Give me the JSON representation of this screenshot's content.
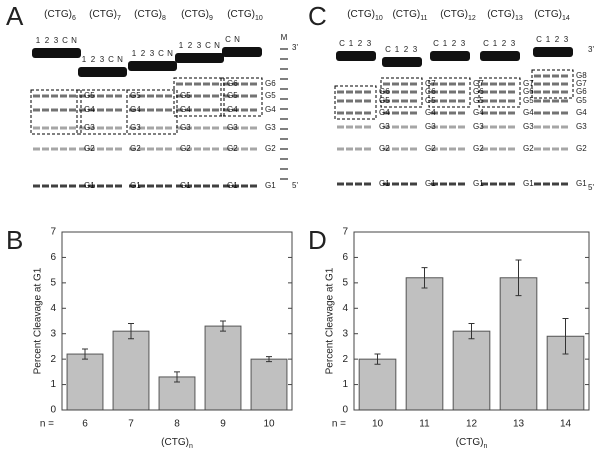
{
  "panels": {
    "a": "A",
    "b": "B",
    "c": "C",
    "d": "D"
  },
  "gel_a": {
    "groups": [
      {
        "name": "(CTG)",
        "n": "6",
        "lanes": [
          "1",
          "2",
          "3",
          "C",
          "N"
        ],
        "bands": [
          "G5",
          "G4",
          "G3",
          "G2",
          "G1"
        ]
      },
      {
        "name": "(CTG)",
        "n": "7",
        "lanes": [
          "1",
          "2",
          "3",
          "C",
          "N"
        ],
        "bands": [
          "G5",
          "G4",
          "G3",
          "G2",
          "G1"
        ]
      },
      {
        "name": "(CTG)",
        "n": "8",
        "lanes": [
          "1",
          "2",
          "3",
          "C",
          "N"
        ],
        "bands": [
          "G5",
          "G4",
          "G3",
          "G2",
          "G1"
        ]
      },
      {
        "name": "(CTG)",
        "n": "9",
        "lanes": [
          "1",
          "2",
          "3",
          "C",
          "N"
        ],
        "bands": [
          "G6",
          "G5",
          "G4",
          "G3",
          "G2",
          "G1"
        ]
      },
      {
        "name": "(CTG)",
        "n": "10",
        "lanes": [
          "C",
          "N"
        ],
        "bands": [
          "G6",
          "G5",
          "G4",
          "G3",
          "G2",
          "G1"
        ]
      }
    ],
    "marker": "M",
    "end3": "3'",
    "end5": "5'"
  },
  "gel_c": {
    "groups": [
      {
        "name": "(CTG)",
        "n": "10",
        "lanes": [
          "C",
          "1",
          "2",
          "3"
        ],
        "bands": [
          "G6",
          "G5",
          "G4",
          "G3",
          "G2",
          "G1"
        ]
      },
      {
        "name": "(CTG)",
        "n": "11",
        "lanes": [
          "C",
          "1",
          "2",
          "3"
        ],
        "bands": [
          "G7",
          "G6",
          "G5",
          "G4",
          "G3",
          "G2",
          "G1"
        ]
      },
      {
        "name": "(CTG)",
        "n": "12",
        "lanes": [
          "C",
          "1",
          "2",
          "3"
        ],
        "bands": [
          "G7",
          "G6",
          "G5",
          "G4",
          "G3",
          "G2",
          "G1"
        ]
      },
      {
        "name": "(CTG)",
        "n": "13",
        "lanes": [
          "C",
          "1",
          "2",
          "3"
        ],
        "bands": [
          "G7",
          "G6",
          "G5",
          "G4",
          "G3",
          "G2",
          "G1"
        ]
      },
      {
        "name": "(CTG)",
        "n": "14",
        "lanes": [
          "C",
          "1",
          "2",
          "3"
        ],
        "bands": [
          "G8",
          "G7",
          "G6",
          "G5",
          "G4",
          "G3",
          "G2",
          "G1"
        ]
      }
    ],
    "end3": "3'",
    "end5": "5'"
  },
  "chart_data": [
    {
      "type": "bar",
      "y_label": "Percent Cleavage at G1",
      "x_label": "(CTG)",
      "x_label_subscript": "n",
      "category_prefix": "n =",
      "categories": [
        "6",
        "7",
        "8",
        "9",
        "10"
      ],
      "values": [
        2.2,
        3.1,
        1.3,
        3.3,
        2.0
      ],
      "errors": [
        0.2,
        0.3,
        0.2,
        0.2,
        0.1
      ],
      "color": "#c0c0c0",
      "ylim": [
        0,
        7
      ],
      "yticks": [
        0,
        1,
        2,
        3,
        4,
        5,
        6,
        7
      ]
    },
    {
      "type": "bar",
      "y_label": "Percent Cleavage at G1",
      "x_label": "(CTG)",
      "x_label_subscript": "n",
      "category_prefix": "n =",
      "categories": [
        "10",
        "11",
        "12",
        "13",
        "14"
      ],
      "values": [
        2.0,
        5.2,
        3.1,
        5.2,
        2.9
      ],
      "errors": [
        0.2,
        0.4,
        0.3,
        0.7,
        0.7
      ],
      "color": "#c0c0c0",
      "ylim": [
        0,
        7
      ],
      "yticks": [
        0,
        1,
        2,
        3,
        4,
        5,
        6,
        7
      ]
    }
  ]
}
